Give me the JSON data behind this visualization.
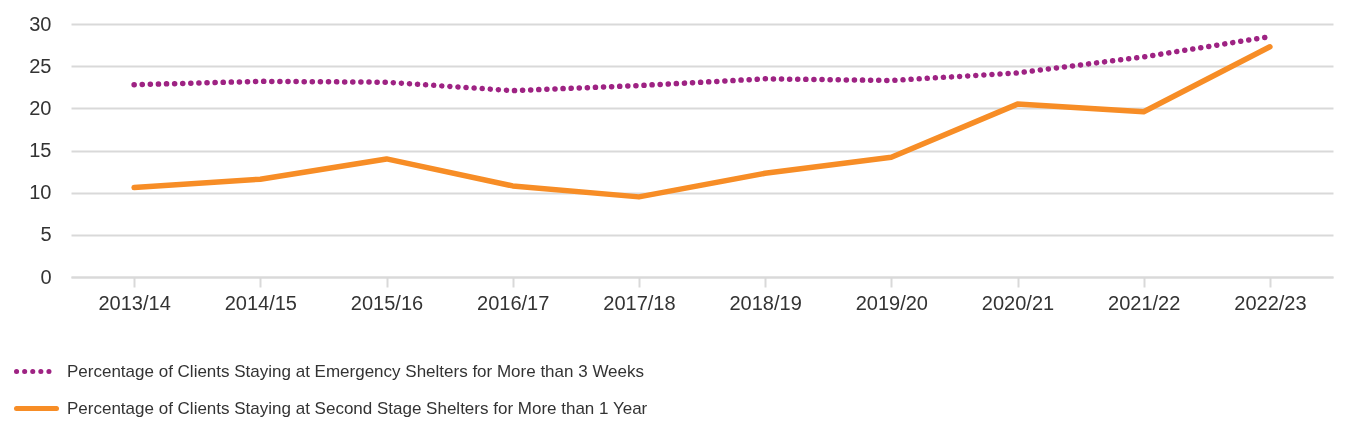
{
  "chart_data": {
    "type": "line",
    "categories": [
      "2013/14",
      "2014/15",
      "2015/16",
      "2016/17",
      "2017/18",
      "2018/19",
      "2019/20",
      "2020/21",
      "2021/22",
      "2022/23"
    ],
    "series": [
      {
        "name": "Percentage of Clients Staying at Emergency Shelters for More than 3 Weeks",
        "color": "#9e2383",
        "line_style": "dotted",
        "values": [
          22.8,
          23.2,
          23.1,
          22.1,
          22.7,
          23.5,
          23.3,
          24.2,
          26.1,
          28.5
        ]
      },
      {
        "name": "Percentage of Clients Staying at Second Stage Shelters for More than 1 Year",
        "color": "#f78d26",
        "line_style": "solid",
        "values": [
          10.6,
          11.6,
          14.0,
          10.8,
          9.5,
          12.3,
          14.2,
          20.5,
          19.6,
          27.3
        ]
      }
    ],
    "ylim": [
      0,
      30
    ],
    "yticks": [
      0,
      5,
      10,
      15,
      20,
      25,
      30
    ],
    "grid": "y",
    "legend": "bottom left",
    "marker": "none"
  }
}
